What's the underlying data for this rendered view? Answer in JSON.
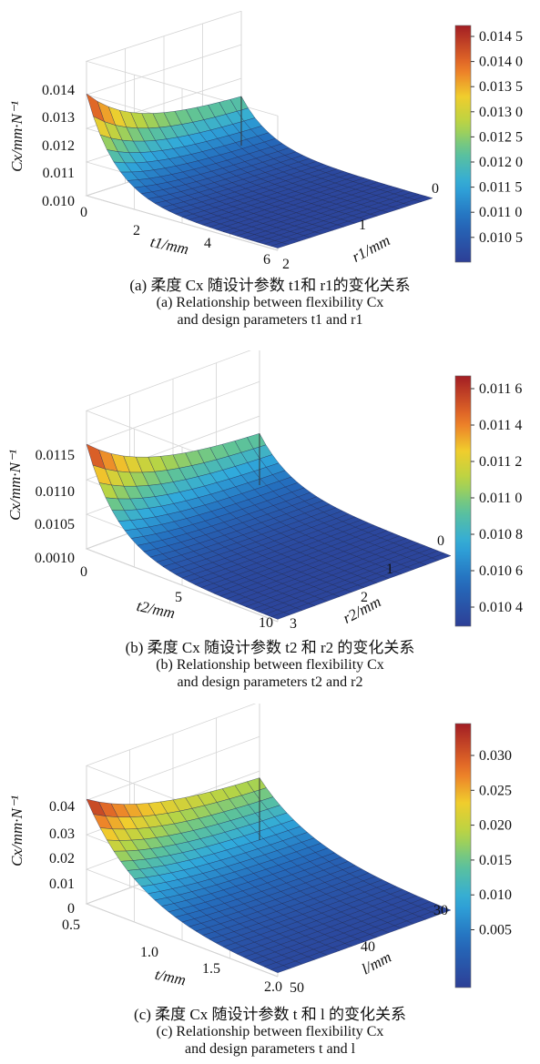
{
  "chart_data": [
    {
      "type": "surface3d",
      "panel": "a",
      "zlabel": "Cx/mm·N⁻¹",
      "xlabel": "t1/mm",
      "ylabel": "r1/mm",
      "z_ticks": [
        "0.010",
        "0.011",
        "0.012",
        "0.013",
        "0.014"
      ],
      "x_ticks": [
        "0",
        "2",
        "4",
        "6"
      ],
      "y_ticks": [
        "2",
        "1",
        "0"
      ],
      "colorbar_ticks": [
        "0.014 5",
        "0.014 0",
        "0.013 5",
        "0.013 0",
        "0.012 5",
        "0.012 0",
        "0.011 5",
        "0.011 0",
        "0.010 5"
      ],
      "z_range": [
        0.0101,
        0.0148
      ],
      "caption_cn": "(a) 柔度 Cx 随设计参数 t1和 r1的变化关系",
      "caption_en_1": "(a) Relationship between flexibility Cx",
      "caption_en_2": "and design parameters t1 and r1"
    },
    {
      "type": "surface3d",
      "panel": "b",
      "zlabel": "Cx/mm·N⁻¹",
      "xlabel": "t2/mm",
      "ylabel": "r2/mm",
      "z_ticks": [
        "0.0010",
        "0.0105",
        "0.0110",
        "0.0115"
      ],
      "x_ticks": [
        "0",
        "5",
        "10"
      ],
      "y_ticks": [
        "3",
        "2",
        "1",
        "0"
      ],
      "colorbar_ticks": [
        "0.011 6",
        "0.011 4",
        "0.011 2",
        "0.011 0",
        "0.010 8",
        "0.010 6",
        "0.010 4"
      ],
      "z_range": [
        0.01025,
        0.01163
      ],
      "caption_cn": "(b) 柔度 Cx 随设计参数 t2 和 r2 的变化关系",
      "caption_en_1": "(b) Relationship between flexibility Cx",
      "caption_en_2": "and design parameters t2 and r2"
    },
    {
      "type": "surface3d",
      "panel": "c",
      "zlabel": "Cx/mm·N⁻¹",
      "xlabel": "t/mm",
      "ylabel": "l/mm",
      "z_ticks": [
        "0",
        "0.01",
        "0.02",
        "0.03",
        "0.04"
      ],
      "x_ticks": [
        "0.5",
        "1.0",
        "1.5",
        "2.0"
      ],
      "y_ticks": [
        "50",
        "40",
        "30"
      ],
      "colorbar_ticks": [
        "0.030",
        "0.025",
        "0.020",
        "0.015",
        "0.010",
        "0.005"
      ],
      "z_range": [
        0.0005,
        0.034
      ],
      "caption_cn": "(c) 柔度 Cx 随设计参数 t 和 l 的变化关系",
      "caption_en_1": "(c) Relationship between flexibility Cx",
      "caption_en_2": "and design parameters t and l"
    }
  ],
  "colors": {
    "low": "#2d3f96",
    "high": "#a21d24"
  }
}
